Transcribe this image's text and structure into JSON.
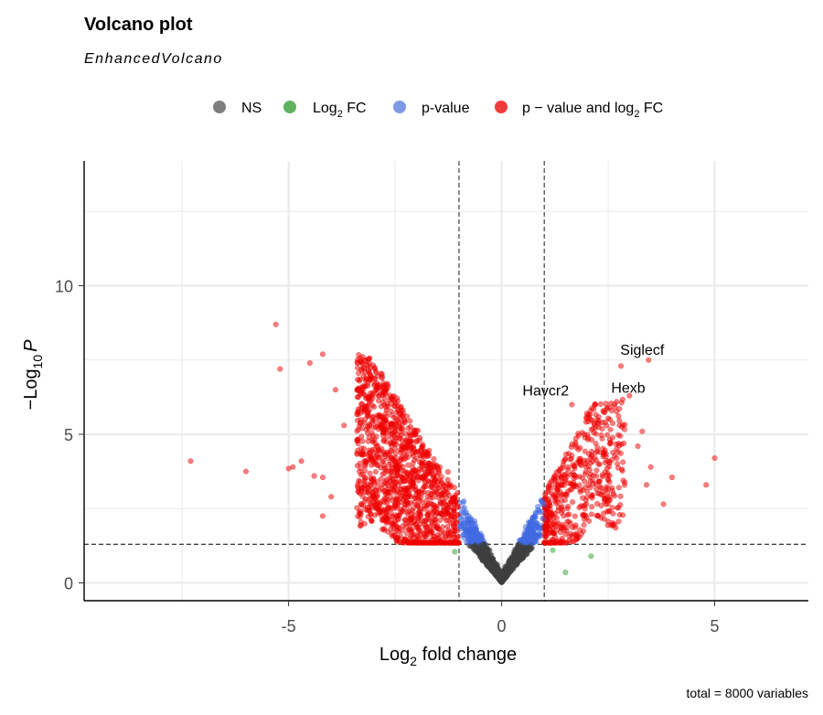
{
  "chart_data": {
    "type": "scatter",
    "title": "Volcano plot",
    "subtitle": "EnhancedVolcano",
    "caption": "total = 8000 variables",
    "xlabel": {
      "main": "Log",
      "sub": "2",
      "rest": " fold change"
    },
    "ylabel": {
      "prefix": "−Log",
      "sub": "10",
      "var": "P"
    },
    "xlim": [
      -9.8,
      7.2
    ],
    "ylim": [
      -0.6,
      14.2
    ],
    "x_ticks": [
      -5,
      0,
      5
    ],
    "x_tick_labels": [
      "-5",
      "0",
      "5"
    ],
    "y_ticks": [
      0,
      5,
      10
    ],
    "y_tick_labels": [
      "0",
      "5",
      "10"
    ],
    "grid": true,
    "legend_position": "top",
    "fc_cutoff": 1,
    "p_cutoff_neglog10": 1.3,
    "legend": [
      {
        "key": "ns",
        "label": "NS",
        "color": "#7f7f7f"
      },
      {
        "key": "fc",
        "label_main": "Log",
        "label_sub": "2",
        "label_rest": " FC",
        "color": "#5fb35f"
      },
      {
        "key": "pval",
        "label": "p-value",
        "color": "#7f9ae6"
      },
      {
        "key": "both",
        "label_main": "p − value and log",
        "label_sub": "2",
        "label_rest": " FC",
        "color": "#ef3b3b"
      }
    ],
    "series_colors": {
      "ns": "#404040",
      "fc": "#2ca02c",
      "pval": "#4169e1",
      "both": "#ee0000"
    },
    "labeled_points": [
      {
        "label": "Siglecf",
        "x": 3.45,
        "y": 7.5
      },
      {
        "label": "Havcr2",
        "x": 1.65,
        "y": 6.0
      },
      {
        "label": "Hexb",
        "x": 2.7,
        "y": 6.1
      }
    ],
    "outlier_points": [
      {
        "x": -7.3,
        "y": 4.1
      },
      {
        "x": -6.0,
        "y": 3.75
      },
      {
        "x": -5.3,
        "y": 8.7
      },
      {
        "x": -5.2,
        "y": 7.2
      },
      {
        "x": -5.0,
        "y": 3.85
      },
      {
        "x": -4.9,
        "y": 3.9
      },
      {
        "x": -4.7,
        "y": 4.1
      },
      {
        "x": -4.5,
        "y": 7.4
      },
      {
        "x": -4.2,
        "y": 7.7
      },
      {
        "x": -4.4,
        "y": 3.6
      },
      {
        "x": -4.2,
        "y": 3.55
      },
      {
        "x": -4.0,
        "y": 2.9
      },
      {
        "x": -4.2,
        "y": 2.25
      },
      {
        "x": -3.9,
        "y": 6.5
      },
      {
        "x": -3.7,
        "y": 5.3
      },
      {
        "x": 4.8,
        "y": 3.3
      },
      {
        "x": 5.0,
        "y": 4.2
      },
      {
        "x": 4.0,
        "y": 3.55
      },
      {
        "x": 3.8,
        "y": 2.65
      },
      {
        "x": 3.4,
        "y": 3.3
      },
      {
        "x": 3.5,
        "y": 3.9
      },
      {
        "x": 3.2,
        "y": 4.6
      },
      {
        "x": 3.3,
        "y": 5.1
      },
      {
        "x": 2.8,
        "y": 7.3
      },
      {
        "x": 3.0,
        "y": 6.3
      },
      {
        "x": 2.2,
        "y": 6.0
      },
      {
        "x": 2.4,
        "y": 5.75
      },
      {
        "x": 2.5,
        "y": 3.5
      },
      {
        "x": 2.7,
        "y": 4.2
      },
      {
        "x": 2.0,
        "y": 5.7
      },
      {
        "x": 2.1,
        "y": 0.9
      },
      {
        "x": 1.5,
        "y": 0.35
      },
      {
        "x": 1.2,
        "y": 1.1
      },
      {
        "x": -1.1,
        "y": 1.05
      }
    ]
  }
}
